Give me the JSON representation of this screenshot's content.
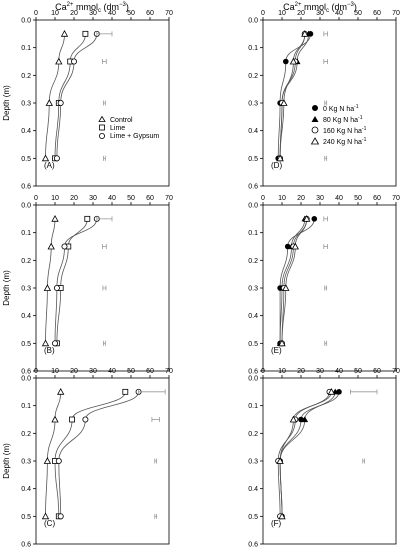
{
  "header": {
    "left": {
      "base": "Ca",
      "sup": "2+",
      "mid": " mmol",
      "sub": "c",
      "tail": " (dm",
      "sup2": "−3",
      "end": ")"
    },
    "right": {
      "base": "Ca",
      "sup": "2+",
      "mid": " mmol",
      "sub": "c",
      "tail": " (dm",
      "sup2": "−3",
      "end": ")"
    }
  },
  "legend_left": [
    "Control",
    "Lime",
    "Lime + Gypsum"
  ],
  "legend_right": [
    {
      "text": "0 Kg N ha",
      "sup": "-1"
    },
    {
      "text": "80 Kg N ha",
      "sup": "-1"
    },
    {
      "text": "160 Kg N ha",
      "sup": "-1"
    },
    {
      "text": "240 Kg N ha",
      "sup": "-1"
    }
  ],
  "series_colors": {
    "curve": "#555555",
    "errorbar": "#999999",
    "axis": "#000000"
  },
  "chart_data": [
    {
      "panel": "(A)",
      "type": "line",
      "xlim": [
        0,
        70
      ],
      "ylim": [
        0,
        0.6
      ],
      "xticks": [
        "0",
        "10",
        "20",
        "30",
        "40",
        "50",
        "60",
        "70"
      ],
      "yticks": [
        "0.0",
        "0.1",
        "0.2",
        "0.3",
        "0.4",
        "0.5",
        "0.6"
      ],
      "ylabel": "Depth (m)",
      "series": [
        {
          "name": "Control",
          "marker": "triangle-open",
          "x": [
            15,
            12,
            7,
            5
          ],
          "y": [
            0.05,
            0.15,
            0.3,
            0.5
          ]
        },
        {
          "name": "Lime",
          "marker": "square-open",
          "x": [
            26,
            18,
            12,
            10
          ],
          "y": [
            0.05,
            0.15,
            0.3,
            0.5
          ]
        },
        {
          "name": "Lime + Gypsum",
          "marker": "circle-open",
          "x": [
            32,
            20,
            13,
            11
          ],
          "y": [
            0.05,
            0.15,
            0.3,
            0.5
          ]
        }
      ],
      "error_bars": [
        {
          "y": 0.05,
          "x": 36,
          "err": 4
        },
        {
          "y": 0.15,
          "x": 36,
          "err": 1
        },
        {
          "y": 0.3,
          "x": 36,
          "err": 0.5
        },
        {
          "y": 0.5,
          "x": 36,
          "err": 0.5
        }
      ]
    },
    {
      "panel": "(D)",
      "type": "line",
      "xlim": [
        0,
        70
      ],
      "ylim": [
        0,
        0.6
      ],
      "xticks": [
        "0",
        "10",
        "20",
        "30",
        "40",
        "50",
        "60",
        "70"
      ],
      "yticks": [
        "0.0",
        "0.1",
        "0.2",
        "0.3",
        "0.4",
        "0.5",
        "0.6"
      ],
      "series": [
        {
          "name": "0 Kg N ha-1",
          "marker": "circle-filled",
          "x": [
            25,
            12,
            9,
            8
          ],
          "y": [
            0.05,
            0.15,
            0.3,
            0.5
          ]
        },
        {
          "name": "80 Kg N ha-1",
          "marker": "triangle-filled",
          "x": [
            24,
            18,
            10,
            9
          ],
          "y": [
            0.05,
            0.15,
            0.3,
            0.5
          ]
        },
        {
          "name": "160 Kg N ha-1",
          "marker": "circle-open",
          "x": [
            22,
            17,
            10,
            9
          ],
          "y": [
            0.05,
            0.15,
            0.3,
            0.5
          ]
        },
        {
          "name": "240 Kg N ha-1",
          "marker": "triangle-open",
          "x": [
            22,
            16,
            11,
            9
          ],
          "y": [
            0.05,
            0.15,
            0.3,
            0.5
          ]
        }
      ],
      "error_bars": [
        {
          "y": 0.05,
          "x": 33,
          "err": 1
        },
        {
          "y": 0.15,
          "x": 33,
          "err": 1
        },
        {
          "y": 0.3,
          "x": 33,
          "err": 0.5
        },
        {
          "y": 0.5,
          "x": 33,
          "err": 0.5
        }
      ]
    },
    {
      "panel": "(B)",
      "type": "line",
      "xlim": [
        0,
        70
      ],
      "ylim": [
        0,
        0.6
      ],
      "xticks": [
        "0",
        "10",
        "20",
        "30",
        "40",
        "50",
        "60",
        "70"
      ],
      "yticks": [
        "0.0",
        "0.1",
        "0.2",
        "0.3",
        "0.4",
        "0.5",
        "0.6"
      ],
      "ylabel": "Depth (m)",
      "series": [
        {
          "name": "Control",
          "marker": "triangle-open",
          "x": [
            10,
            8,
            6,
            5
          ],
          "y": [
            0.05,
            0.15,
            0.3,
            0.5
          ]
        },
        {
          "name": "Lime",
          "marker": "square-open",
          "x": [
            27,
            17,
            13,
            11
          ],
          "y": [
            0.05,
            0.15,
            0.3,
            0.5
          ]
        },
        {
          "name": "Lime + Gypsum",
          "marker": "circle-open",
          "x": [
            32,
            15,
            11,
            10
          ],
          "y": [
            0.05,
            0.15,
            0.3,
            0.5
          ]
        }
      ],
      "error_bars": [
        {
          "y": 0.05,
          "x": 36,
          "err": 4
        },
        {
          "y": 0.15,
          "x": 36,
          "err": 1
        },
        {
          "y": 0.3,
          "x": 36,
          "err": 0.8
        },
        {
          "y": 0.5,
          "x": 36,
          "err": 0.5
        }
      ]
    },
    {
      "panel": "(E)",
      "type": "line",
      "xlim": [
        0,
        70
      ],
      "ylim": [
        0,
        0.6
      ],
      "xticks": [
        "0",
        "10",
        "20",
        "30",
        "40",
        "50",
        "60",
        "70"
      ],
      "yticks": [
        "0.0",
        "0.1",
        "0.2",
        "0.3",
        "0.4",
        "0.5",
        "0.6"
      ],
      "series": [
        {
          "name": "0 Kg N ha-1",
          "marker": "circle-filled",
          "x": [
            27,
            13,
            9,
            9
          ],
          "y": [
            0.05,
            0.15,
            0.3,
            0.5
          ]
        },
        {
          "name": "80 Kg N ha-1",
          "marker": "triangle-filled",
          "x": [
            22,
            15,
            10,
            9
          ],
          "y": [
            0.05,
            0.15,
            0.3,
            0.5
          ]
        },
        {
          "name": "160 Kg N ha-1",
          "marker": "circle-open",
          "x": [
            23,
            16,
            11,
            10
          ],
          "y": [
            0.05,
            0.15,
            0.3,
            0.5
          ]
        },
        {
          "name": "240 Kg N ha-1",
          "marker": "triangle-open",
          "x": [
            23,
            17,
            12,
            10
          ],
          "y": [
            0.05,
            0.15,
            0.3,
            0.5
          ]
        }
      ],
      "error_bars": [
        {
          "y": 0.05,
          "x": 33,
          "err": 1
        },
        {
          "y": 0.15,
          "x": 33,
          "err": 1
        },
        {
          "y": 0.3,
          "x": 33,
          "err": 0.5
        },
        {
          "y": 0.5,
          "x": 33,
          "err": 0.5
        }
      ]
    },
    {
      "panel": "(C)",
      "type": "line",
      "xlim": [
        0,
        70
      ],
      "ylim": [
        0,
        0.6
      ],
      "xticks": [
        "0",
        "10",
        "20",
        "30",
        "40",
        "50",
        "60",
        "70"
      ],
      "yticks": [
        "0.0",
        "0.1",
        "0.2",
        "0.3",
        "0.4",
        "0.5",
        "0.6"
      ],
      "ylabel": "Depth (m)",
      "series": [
        {
          "name": "Control",
          "marker": "triangle-open",
          "x": [
            13,
            10,
            6,
            5
          ],
          "y": [
            0.05,
            0.15,
            0.3,
            0.5
          ]
        },
        {
          "name": "Lime",
          "marker": "square-open",
          "x": [
            47,
            19,
            10,
            12
          ],
          "y": [
            0.05,
            0.15,
            0.3,
            0.5
          ]
        },
        {
          "name": "Lime + Gypsum",
          "marker": "circle-open",
          "x": [
            54,
            26,
            12,
            13
          ],
          "y": [
            0.05,
            0.15,
            0.3,
            0.5
          ]
        }
      ],
      "error_bars": [
        {
          "y": 0.05,
          "x": 61,
          "err": 7
        },
        {
          "y": 0.15,
          "x": 63,
          "err": 2
        },
        {
          "y": 0.3,
          "x": 63,
          "err": 0.5
        },
        {
          "y": 0.5,
          "x": 63,
          "err": 0.5
        }
      ]
    },
    {
      "panel": "(F)",
      "type": "line",
      "xlim": [
        0,
        70
      ],
      "ylim": [
        0,
        0.6
      ],
      "xticks": [
        "0",
        "10",
        "20",
        "30",
        "40",
        "50",
        "60",
        "70"
      ],
      "yticks": [
        "0.0",
        "0.1",
        "0.2",
        "0.3",
        "0.4",
        "0.5",
        "0.6"
      ],
      "series": [
        {
          "name": "0 Kg N ha-1",
          "marker": "circle-filled",
          "x": [
            40,
            20,
            9,
            10
          ],
          "y": [
            0.05,
            0.15,
            0.3,
            0.5
          ]
        },
        {
          "name": "80 Kg N ha-1",
          "marker": "triangle-filled",
          "x": [
            38,
            22,
            9,
            10
          ],
          "y": [
            0.05,
            0.15,
            0.3,
            0.5
          ]
        },
        {
          "name": "160 Kg N ha-1",
          "marker": "circle-open",
          "x": [
            35,
            17,
            8,
            9
          ],
          "y": [
            0.05,
            0.15,
            0.3,
            0.5
          ]
        },
        {
          "name": "240 Kg N ha-1",
          "marker": "triangle-open",
          "x": [
            36,
            16,
            9,
            10
          ],
          "y": [
            0.05,
            0.15,
            0.3,
            0.5
          ]
        }
      ],
      "error_bars": [
        {
          "y": 0.05,
          "x": 53,
          "err": 7
        },
        {
          "y": 0.3,
          "x": 53,
          "err": 0.5
        }
      ]
    }
  ]
}
